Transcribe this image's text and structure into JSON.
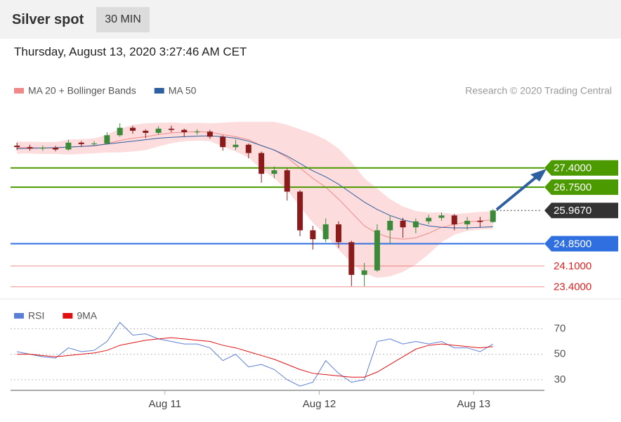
{
  "header": {
    "title": "Silver spot",
    "timeframe": "30 MIN",
    "datetime": "Thursday, August 13, 2020 3:27:46 AM CET"
  },
  "chart_data": [
    {
      "type": "candlestick",
      "credit": "Research © 2020 Trading Central",
      "x": [
        0,
        1,
        2,
        3,
        4,
        5,
        6,
        7,
        8,
        9,
        10,
        11,
        12,
        13,
        14,
        15,
        16,
        17,
        18,
        19,
        20,
        21,
        22,
        23,
        24,
        25,
        26,
        27,
        28,
        29,
        30,
        31,
        32,
        33,
        34,
        35,
        36,
        37
      ],
      "xlim": [
        -0.5,
        41
      ],
      "ylim": [
        23.0,
        29.5
      ],
      "open": [
        28.15,
        28.1,
        28.05,
        28.08,
        28.02,
        28.25,
        28.2,
        28.22,
        28.5,
        28.75,
        28.65,
        28.58,
        28.72,
        28.68,
        28.6,
        28.62,
        28.45,
        28.1,
        28.18,
        27.9,
        27.2,
        27.32,
        26.6,
        25.3,
        25.0,
        25.5,
        24.9,
        23.8,
        23.95,
        25.3,
        25.62,
        25.4,
        25.6,
        25.72,
        25.8,
        25.5,
        25.62,
        25.58
      ],
      "high": [
        28.25,
        28.18,
        28.15,
        28.14,
        28.35,
        28.3,
        28.3,
        28.6,
        28.9,
        28.82,
        28.7,
        28.8,
        28.82,
        28.72,
        28.7,
        28.68,
        28.5,
        28.35,
        28.22,
        27.95,
        27.45,
        27.38,
        26.65,
        25.45,
        25.7,
        25.6,
        24.95,
        24.2,
        25.5,
        25.8,
        25.72,
        25.7,
        25.82,
        25.9,
        25.85,
        25.75,
        25.75,
        26.02
      ],
      "low": [
        28.0,
        27.98,
        27.98,
        27.96,
        27.98,
        28.12,
        28.14,
        28.18,
        28.45,
        28.55,
        28.4,
        28.52,
        28.6,
        28.45,
        28.52,
        28.38,
        27.98,
        28.0,
        27.72,
        26.9,
        27.05,
        26.3,
        25.1,
        24.65,
        24.9,
        24.7,
        23.42,
        23.42,
        23.9,
        24.85,
        25.05,
        25.2,
        25.5,
        25.62,
        25.3,
        25.32,
        25.4,
        25.55
      ],
      "close": [
        28.1,
        28.05,
        28.08,
        28.02,
        28.25,
        28.2,
        28.22,
        28.5,
        28.75,
        28.65,
        28.58,
        28.72,
        28.68,
        28.6,
        28.62,
        28.45,
        28.1,
        28.18,
        27.9,
        27.2,
        27.32,
        26.6,
        25.3,
        25.0,
        25.5,
        24.9,
        23.8,
        23.95,
        25.3,
        25.62,
        25.4,
        25.6,
        25.72,
        25.8,
        25.5,
        25.62,
        25.58,
        25.967
      ],
      "up_color": "#3a8a3a",
      "down_color": "#8b1a1a",
      "series": [
        {
          "name": "MA 20 + Bollinger Bands",
          "color": "#f08a8a",
          "band_color": "#fcdcdc",
          "values": [
            28.08,
            28.08,
            28.07,
            28.07,
            28.1,
            28.12,
            28.14,
            28.22,
            28.32,
            28.4,
            28.45,
            28.52,
            28.58,
            28.6,
            28.62,
            28.6,
            28.52,
            28.45,
            28.35,
            28.15,
            28.0,
            27.75,
            27.4,
            27.05,
            26.75,
            26.35,
            25.9,
            25.45,
            25.2,
            25.05,
            25.0,
            25.05,
            25.2,
            25.4,
            25.5,
            25.58,
            25.62,
            25.65
          ],
          "upper": [
            28.28,
            28.28,
            28.27,
            28.27,
            28.35,
            28.37,
            28.39,
            28.52,
            28.72,
            28.85,
            28.9,
            28.92,
            28.93,
            28.9,
            28.92,
            28.9,
            28.92,
            28.95,
            28.95,
            28.95,
            28.95,
            28.85,
            28.7,
            28.55,
            28.35,
            28.05,
            27.6,
            27.05,
            26.7,
            26.35,
            26.1,
            25.95,
            25.9,
            25.9,
            25.85,
            25.88,
            25.92,
            25.95
          ],
          "lower": [
            27.88,
            27.88,
            27.87,
            27.87,
            27.85,
            27.87,
            27.89,
            27.92,
            27.92,
            27.95,
            28.0,
            28.12,
            28.23,
            28.3,
            28.32,
            28.3,
            28.12,
            27.95,
            27.75,
            27.35,
            27.05,
            26.65,
            26.1,
            25.55,
            25.15,
            24.65,
            24.2,
            23.85,
            23.7,
            23.75,
            23.9,
            24.15,
            24.5,
            24.9,
            25.15,
            25.28,
            25.32,
            25.35
          ]
        },
        {
          "name": "MA 50",
          "color": "#2e5fa0",
          "values": [
            28.05,
            28.06,
            28.07,
            28.08,
            28.1,
            28.12,
            28.15,
            28.2,
            28.25,
            28.3,
            28.35,
            28.4,
            28.43,
            28.45,
            28.47,
            28.48,
            28.45,
            28.4,
            28.3,
            28.15,
            28.0,
            27.8,
            27.55,
            27.3,
            27.1,
            26.85,
            26.55,
            26.25,
            26.0,
            25.8,
            25.65,
            25.55,
            25.45,
            25.4,
            25.38,
            25.38,
            25.4,
            25.42
          ]
        }
      ],
      "levels": [
        {
          "value": 27.4,
          "label": "27.4000",
          "color": "#4a9a00",
          "tag": true
        },
        {
          "value": 26.75,
          "label": "26.7500",
          "color": "#4a9a00",
          "tag": true
        },
        {
          "value": 25.967,
          "label": "25.9670",
          "color": "#333333",
          "tag": true,
          "dotted": true
        },
        {
          "value": 24.85,
          "label": "24.8500",
          "color": "#2f6fe0",
          "tag": true
        },
        {
          "value": 24.1,
          "label": "24.1000",
          "color": "#e02020",
          "tag": false
        },
        {
          "value": 23.4,
          "label": "23.4000",
          "color": "#e02020",
          "tag": false
        }
      ]
    },
    {
      "type": "line",
      "x": [
        0,
        1,
        2,
        3,
        4,
        5,
        6,
        7,
        8,
        9,
        10,
        11,
        12,
        13,
        14,
        15,
        16,
        17,
        18,
        19,
        20,
        21,
        22,
        23,
        24,
        25,
        26,
        27,
        28,
        29,
        30,
        31,
        32,
        33,
        34,
        35,
        36,
        37
      ],
      "xlim": [
        -0.5,
        41
      ],
      "xticks": [
        {
          "value": 11.5,
          "label": "Aug 11"
        },
        {
          "value": 23.5,
          "label": "Aug 12"
        },
        {
          "value": 35.5,
          "label": "Aug 13"
        }
      ],
      "ylim": [
        20,
        86
      ],
      "yticks": [
        30,
        50,
        70
      ],
      "grid": true,
      "series": [
        {
          "name": "RSI",
          "color": "#5b7fd6",
          "values": [
            52,
            50,
            48,
            47,
            55,
            52,
            53,
            60,
            75,
            65,
            66,
            62,
            60,
            58,
            58,
            55,
            45,
            50,
            40,
            42,
            38,
            30,
            25,
            28,
            45,
            35,
            28,
            30,
            60,
            62,
            58,
            60,
            58,
            60,
            55,
            55,
            52,
            58
          ]
        },
        {
          "name": "9MA",
          "color": "#e01010",
          "values": [
            50,
            50,
            49,
            48,
            49,
            50,
            51,
            53,
            57,
            59,
            61,
            62,
            63,
            62,
            61,
            60,
            57,
            55,
            52,
            49,
            46,
            42,
            38,
            35,
            34,
            33,
            32,
            32,
            36,
            42,
            48,
            54,
            57,
            58,
            57,
            56,
            55,
            56
          ]
        }
      ]
    }
  ]
}
